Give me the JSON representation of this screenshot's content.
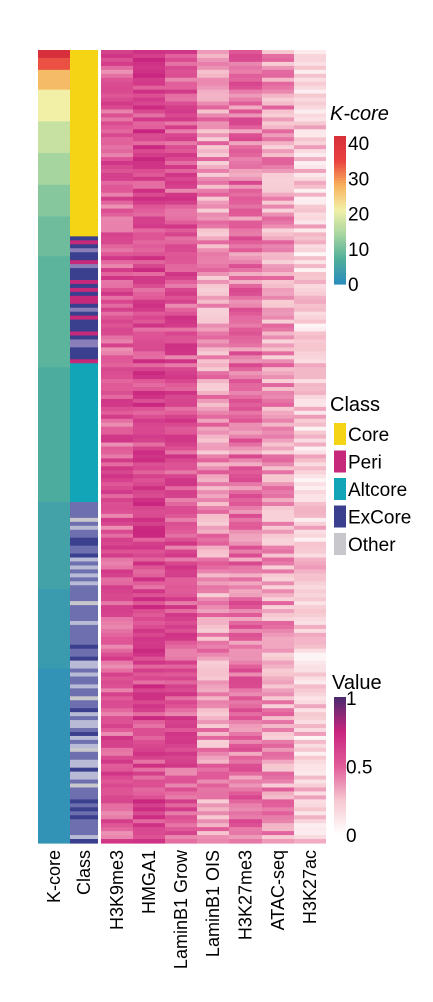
{
  "chart_data": {
    "type": "heatmap",
    "columns": [
      "K-core",
      "Class",
      "H3K9me3",
      "HMGA1",
      "LaminB1 Grow",
      "LaminB1 OIS",
      "H3K27me3",
      "ATAC-seq",
      "H3K27ac"
    ],
    "row_count": 200,
    "kcore": {
      "title": "K-core",
      "ticks": [
        0,
        10,
        20,
        30,
        40
      ],
      "range": [
        0,
        42
      ],
      "colors": [
        "#2b8cbe",
        "#4fae9a",
        "#a6d5a0",
        "#f2f0a7",
        "#f7b25c",
        "#e9413f",
        "#d7303c"
      ],
      "segments": [
        {
          "until": 0.012,
          "value": 42
        },
        {
          "until": 0.025,
          "value": 34
        },
        {
          "until": 0.05,
          "value": 27
        },
        {
          "until": 0.09,
          "value": 21
        },
        {
          "until": 0.13,
          "value": 17
        },
        {
          "until": 0.17,
          "value": 14
        },
        {
          "until": 0.21,
          "value": 11.5
        },
        {
          "until": 0.26,
          "value": 9.5
        },
        {
          "until": 0.4,
          "value": 8
        },
        {
          "until": 0.57,
          "value": 6.5
        },
        {
          "until": 0.68,
          "value": 4.5
        },
        {
          "until": 0.78,
          "value": 3
        },
        {
          "until": 1.0,
          "value": 1.5
        }
      ]
    },
    "class_legend": {
      "title": "Class",
      "items": [
        {
          "label": "Core",
          "color": "#f5d416"
        },
        {
          "label": "Peri",
          "color": "#c7297a"
        },
        {
          "label": "Altcore",
          "color": "#12a5b8"
        },
        {
          "label": "ExCore",
          "color": "#3a3f8e"
        },
        {
          "label": "Other",
          "color": "#c8c8cc"
        }
      ]
    },
    "class_blocks": [
      {
        "until": 0.235,
        "class": "Core"
      },
      {
        "until": 0.395,
        "class": "Peri/ExCore"
      },
      {
        "until": 0.57,
        "class": "Altcore"
      },
      {
        "until": 1.0,
        "class": "ExCore/Other"
      }
    ],
    "column_mean_values": [
      0.58,
      0.66,
      0.6,
      0.4,
      0.5,
      0.38,
      0.22
    ],
    "value_legend": {
      "title": "Value",
      "ticks": [
        0,
        0.5,
        1
      ],
      "range": [
        0,
        1
      ],
      "colors": [
        "#ffffff",
        "#f6c6cf",
        "#e05a98",
        "#c8247e",
        "#4a2a6e"
      ]
    }
  }
}
